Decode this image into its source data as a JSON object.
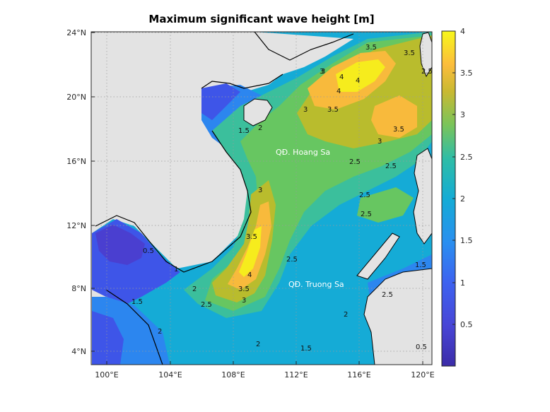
{
  "title": "Maximum significant wave height [m]",
  "lat_ticks": [
    "24°N",
    "20°N",
    "16°N",
    "12°N",
    "8°N",
    "4°N"
  ],
  "lon_ticks": [
    "100°E",
    "104°E",
    "108°E",
    "112°E",
    "116°E",
    "120°E"
  ],
  "colorbar": {
    "ticks": [
      "4",
      "3.5",
      "3",
      "2.5",
      "2",
      "1.5",
      "1",
      "0.5"
    ],
    "min": 0,
    "max": 4
  },
  "regions": {
    "hoang_sa": "QĐ. Hoang Sa",
    "truong_sa": "QĐ. Truong Sa"
  },
  "contour_labels": [
    "3.5",
    "4",
    "3",
    "3.5",
    "3.5",
    "3",
    "2.5",
    "1.5",
    "3",
    "3.5",
    "4",
    "2.5",
    "2.5",
    "2.5",
    "0.5",
    "2",
    "2.5",
    "3.5",
    "3",
    "1.5",
    "2",
    "2",
    "1.5",
    "1.5",
    "0.5",
    "2",
    "2.5",
    "2.5",
    "4",
    "3.5",
    "3",
    "1",
    "2",
    "3",
    "4",
    "2.5"
  ],
  "colors": {
    "land": "#e3e3e3",
    "c05": "#4a3fd0",
    "c10": "#3e55e8",
    "c15": "#2c86ef",
    "c20": "#15abd6",
    "c25": "#3bbf9c",
    "c275": "#67c661",
    "c30": "#b9bc2d",
    "c35": "#f8ba3c",
    "c40": "#f6ec1d"
  }
}
